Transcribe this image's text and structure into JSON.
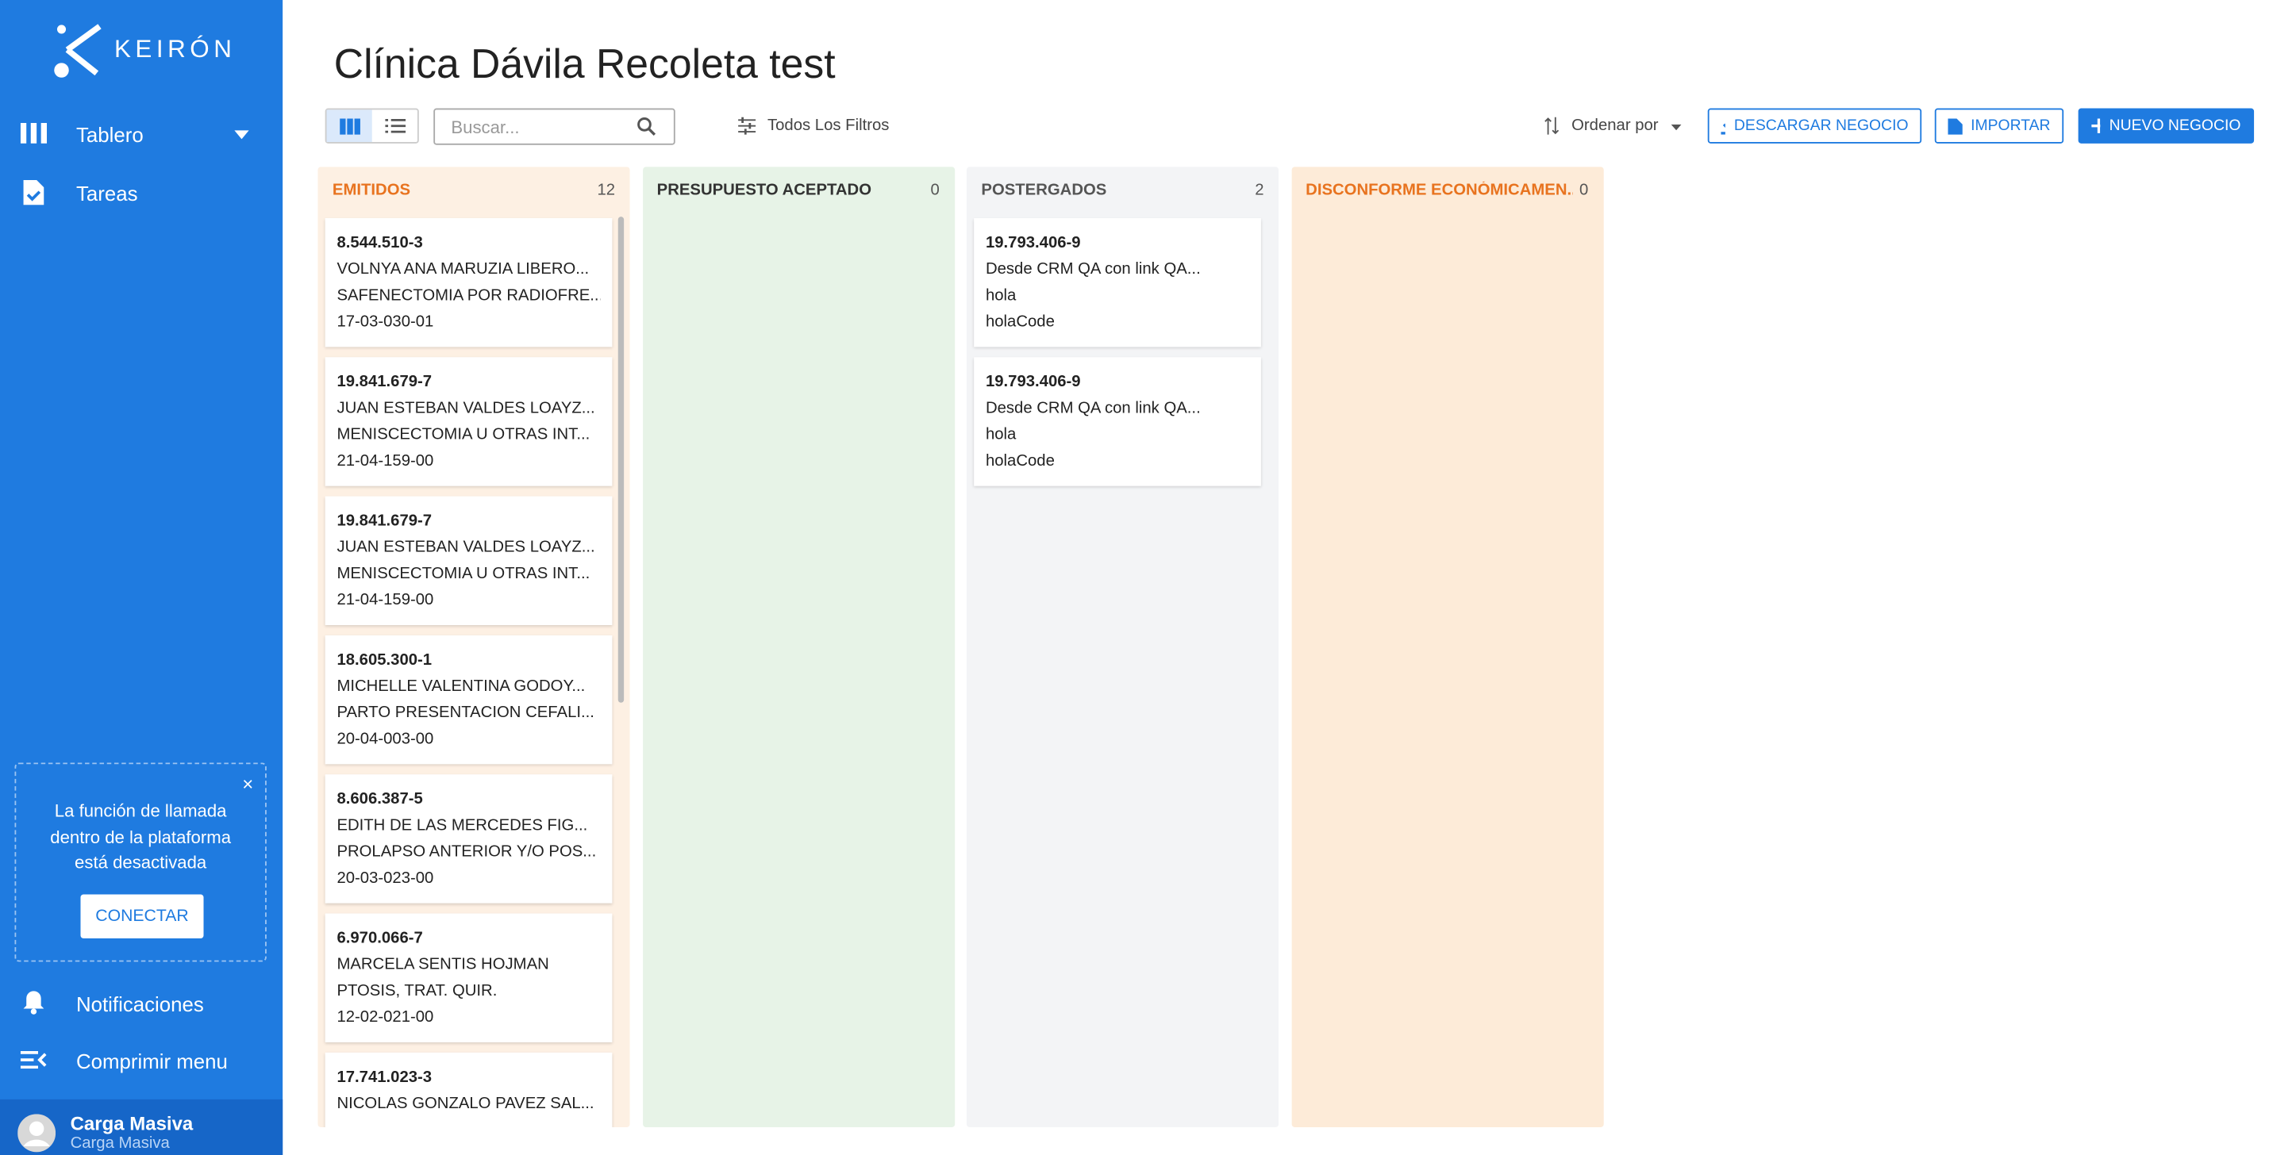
{
  "sidebar": {
    "logo": "KEIRÓN",
    "menu": [
      "Tablero",
      "Tareas"
    ],
    "notice": {
      "text": "La función de llamada dentro de la plataforma está desactivada",
      "button": "CONECTAR"
    },
    "bottom_menu": [
      "Notificaciones",
      "Comprimir menu"
    ],
    "user": {
      "name": "Carga Masiva",
      "role": "Carga Masiva"
    }
  },
  "header": {
    "title": "Clínica Dávila Recoleta test"
  },
  "toolbar": {
    "search_placeholder": "Buscar...",
    "filters": "Todos Los Filtros",
    "sort": "Ordenar por",
    "buttons": [
      "DESCARGAR NEGOCIO",
      "IMPORTAR",
      "NUEVO NEGOCIO"
    ]
  },
  "columns": [
    {
      "title": "EMITIDOS",
      "count": 12,
      "cards": [
        [
          "8.544.510-3",
          "VOLNYA ANA MARUZIA LIBERO...",
          "SAFENECTOMIA POR RADIOFRE...",
          "17-03-030-01"
        ],
        [
          "19.841.679-7",
          "JUAN ESTEBAN VALDES LOAYZ...",
          "MENISCECTOMIA U OTRAS INT...",
          "21-04-159-00"
        ],
        [
          "19.841.679-7",
          "JUAN ESTEBAN VALDES LOAYZ...",
          "MENISCECTOMIA U OTRAS INT...",
          "21-04-159-00"
        ],
        [
          "18.605.300-1",
          "MICHELLE VALENTINA GODOY...",
          "PARTO PRESENTACION CEFALI...",
          "20-04-003-00"
        ],
        [
          "8.606.387-5",
          "EDITH DE LAS MERCEDES FIG...",
          "PROLAPSO ANTERIOR Y/O POS...",
          "20-03-023-00"
        ],
        [
          "6.970.066-7",
          "MARCELA SENTIS HOJMAN",
          "PTOSIS, TRAT. QUIR.",
          "12-02-021-00"
        ],
        [
          "17.741.023-3",
          "NICOLAS GONZALO PAVEZ SAL..."
        ]
      ]
    },
    {
      "title": "PRESUPUESTO ACEPTADO",
      "count": 0,
      "cards": []
    },
    {
      "title": "POSTERGADOS",
      "count": 2,
      "cards": [
        [
          "19.793.406-9",
          "Desde CRM QA con link QA...",
          "hola",
          "holaCode"
        ],
        [
          "19.793.406-9",
          "Desde CRM QA con link QA...",
          "hola",
          "holaCode"
        ]
      ]
    },
    {
      "title": "DISCONFORME ECONÓMICAMEN...",
      "count": 0,
      "cards": []
    }
  ]
}
